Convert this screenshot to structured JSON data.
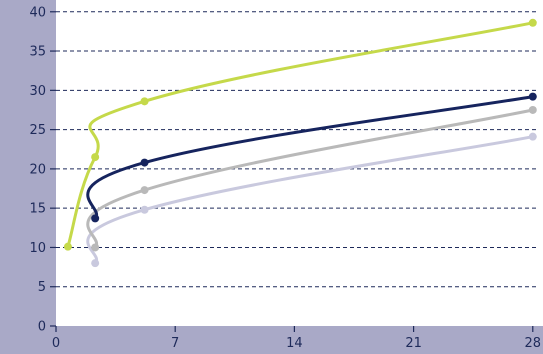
{
  "chart_data": {
    "type": "line",
    "title": "",
    "xlabel": "",
    "ylabel": "",
    "xlim": [
      0,
      28.6
    ],
    "ylim": [
      0,
      41.5
    ],
    "x_ticks": [
      0,
      7,
      14,
      21,
      28
    ],
    "y_ticks": [
      0,
      5,
      10,
      15,
      20,
      25,
      30,
      35,
      40
    ],
    "grid": "horizontal dashed",
    "legend": "none",
    "colors": {
      "background": "#ffffff",
      "axis_band": "#a9a9c7",
      "axis_text": "#1e2a5a",
      "grid": "#1e2a5a"
    },
    "series": [
      {
        "color": "#c5d94a",
        "points": [
          [
            0.7,
            10.1
          ],
          [
            2.3,
            21.5
          ],
          [
            5.2,
            28.6
          ],
          [
            28.0,
            38.6
          ]
        ]
      },
      {
        "color": "#16245e",
        "points": [
          [
            2.3,
            13.7
          ],
          [
            5.2,
            20.8
          ],
          [
            28.0,
            29.2
          ]
        ]
      },
      {
        "color": "#b9b9b9",
        "points": [
          [
            2.3,
            10.0
          ],
          [
            5.2,
            17.3
          ],
          [
            28.0,
            27.5
          ]
        ]
      },
      {
        "color": "#c9c9de",
        "points": [
          [
            2.3,
            8.0
          ],
          [
            5.2,
            14.8
          ],
          [
            28.0,
            24.1
          ]
        ]
      }
    ]
  }
}
